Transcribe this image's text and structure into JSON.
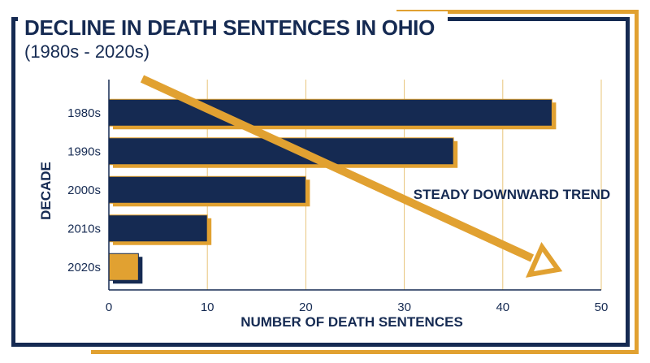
{
  "title": "DECLINE IN DEATH SENTENCES IN OHIO",
  "subtitle": "(1980s - 2020s)",
  "colors": {
    "navy": "#152a52",
    "gold": "#e1a131",
    "grid": "#e8c47a",
    "background": "#ffffff"
  },
  "chart_data": {
    "type": "bar",
    "orientation": "horizontal",
    "categories": [
      "1980s",
      "1990s",
      "2000s",
      "2010s",
      "2020s"
    ],
    "values": [
      45,
      35,
      20,
      10,
      3
    ],
    "bar_colors": [
      "#152a52",
      "#152a52",
      "#152a52",
      "#152a52",
      "#e1a131"
    ],
    "xlabel": "NUMBER OF DEATH SENTENCES",
    "ylabel": "DECADE",
    "xlim": [
      0,
      50
    ],
    "xticks": [
      0,
      10,
      20,
      30,
      40,
      50
    ],
    "grid": "vertical",
    "legend": "none",
    "annotation": "STEADY DOWNWARD TREND"
  }
}
